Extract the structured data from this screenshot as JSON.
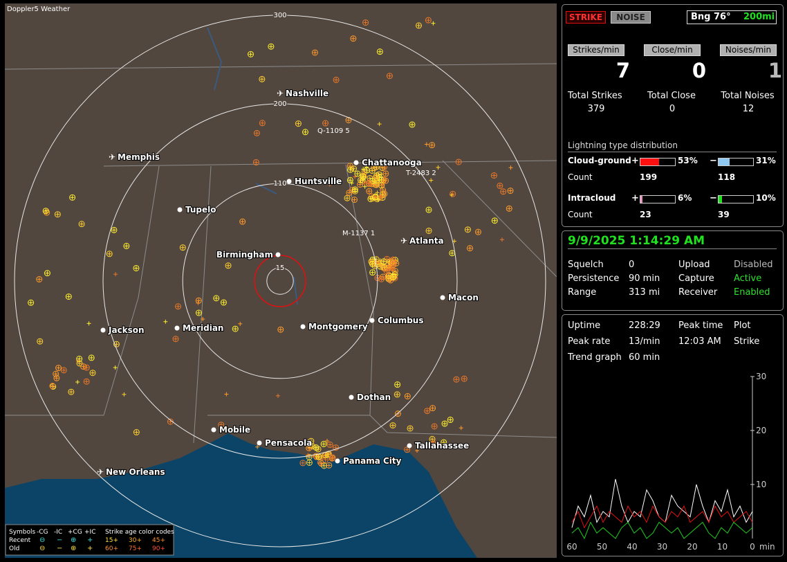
{
  "app": "Doppler5 Weather",
  "map": {
    "range_rings": [
      300,
      200,
      110,
      15
    ],
    "cities": [
      "Nashville",
      "Memphis",
      "Chattanooga",
      "Huntsville",
      "Tupelo",
      "Birmingham",
      "Atlanta",
      "Macon",
      "Columbus",
      "Montgomery",
      "Meridian",
      "Jackson",
      "Dothan",
      "Mobile",
      "Pensacola",
      "Panama City",
      "Tallahassee",
      "New Orleans"
    ],
    "storm_labels": [
      "Q-1109 5",
      "T-2483 2",
      "M-1137 1"
    ],
    "legend": {
      "header": [
        "Symbols",
        "-CG",
        "-IC",
        "+CG",
        "+IC",
        "Strike age color codes"
      ],
      "rows": [
        {
          "label": "Recent",
          "ages": [
            "15+",
            "30+",
            "45+"
          ]
        },
        {
          "label": "Old",
          "ages": [
            "60+",
            "75+",
            "90+"
          ]
        }
      ]
    }
  },
  "mode_buttons": [
    "STRIKE",
    "NOISE"
  ],
  "bearing": {
    "label": "Bng 76°",
    "range": "200mi"
  },
  "rates": [
    {
      "label": "Strikes/min",
      "value": 7
    },
    {
      "label": "Close/min",
      "value": 0
    },
    {
      "label": "Noises/min",
      "value": 1
    }
  ],
  "totals": [
    {
      "label": "Total Strikes",
      "value": 379
    },
    {
      "label": "Total Close",
      "value": 0
    },
    {
      "label": "Total Noises",
      "value": 12
    }
  ],
  "distribution": {
    "title": "Lightning type distribution",
    "count_label": "Count",
    "types": [
      {
        "name": "Cloud-ground",
        "parts": [
          {
            "sign": "+",
            "percent": 53,
            "percent_label": "53%",
            "count": 199,
            "color": "#ff1010"
          },
          {
            "sign": "−",
            "percent": 31,
            "percent_label": "31%",
            "count": 118,
            "color": "#8cc8f0"
          }
        ]
      },
      {
        "name": "Intracloud",
        "parts": [
          {
            "sign": "+",
            "percent": 6,
            "percent_label": "6%",
            "count": 23,
            "color": "#e890c0"
          },
          {
            "sign": "−",
            "percent": 10,
            "percent_label": "10%",
            "count": 39,
            "color": "#20e020"
          }
        ]
      }
    ]
  },
  "clock": "9/9/2025 1:14:29 AM",
  "status": [
    [
      "Squelch",
      "0",
      "Upload",
      "Disabled"
    ],
    [
      "Persistence",
      "90 min",
      "Capture",
      "Active"
    ],
    [
      "Range",
      "313 mi",
      "Receiver",
      "Enabled"
    ]
  ],
  "stats": [
    [
      "Uptime",
      "228:29",
      "Peak time",
      "Plot"
    ],
    [
      "Peak rate",
      "13/min",
      "12:03 AM",
      "Strike"
    ],
    [
      "Trend graph",
      "60 min"
    ]
  ],
  "trend": {
    "ylim": [
      0,
      30
    ],
    "yticks": [
      30,
      20,
      10
    ],
    "xlim": [
      60,
      0
    ],
    "xticks": [
      60,
      50,
      40,
      30,
      20,
      10,
      0
    ],
    "x_unit": "min",
    "series": [
      {
        "color": "#ffffff",
        "values": [
          2,
          6,
          4,
          8,
          3,
          5,
          4,
          11,
          6,
          3,
          5,
          4,
          9,
          7,
          4,
          3,
          8,
          6,
          5,
          4,
          10,
          6,
          3,
          7,
          5,
          9,
          4,
          6,
          3,
          5
        ]
      },
      {
        "color": "#e01010",
        "values": [
          3,
          5,
          2,
          4,
          6,
          3,
          5,
          4,
          3,
          6,
          4,
          5,
          3,
          6,
          4,
          3,
          5,
          4,
          6,
          3,
          4,
          5,
          3,
          6,
          4,
          5,
          3,
          4,
          5,
          3
        ]
      },
      {
        "color": "#20d020",
        "values": [
          1,
          2,
          0,
          3,
          1,
          2,
          1,
          0,
          2,
          3,
          1,
          2,
          0,
          1,
          3,
          2,
          1,
          2,
          0,
          1,
          2,
          3,
          1,
          0,
          2,
          1,
          3,
          2,
          1,
          2
        ]
      }
    ]
  }
}
